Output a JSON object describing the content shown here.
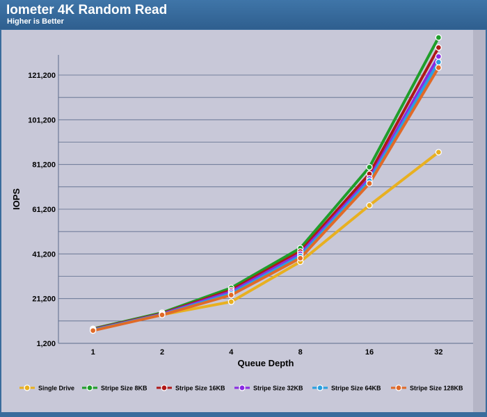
{
  "header": {
    "title": "Iometer 4K Random Read",
    "subtitle": "Higher is Better"
  },
  "chart_data": {
    "type": "line",
    "xlabel": "Queue Depth",
    "ylabel": "IOPS",
    "categories": [
      "1",
      "2",
      "4",
      "8",
      "16",
      "32"
    ],
    "yticks": [
      "1,200",
      "21,200",
      "41,200",
      "61,200",
      "81,200",
      "101,200",
      "121,200"
    ],
    "ylim": [
      1200,
      128000
    ],
    "grid": true,
    "legend_position": "bottom",
    "series": [
      {
        "name": "Single Drive",
        "color": "#e8b020",
        "values": [
          7000,
          14000,
          19800,
          37700,
          62900,
          86700
        ]
      },
      {
        "name": "Stripe Size 8KB",
        "color": "#1f9e2a",
        "values": [
          7700,
          14900,
          26000,
          43800,
          80000,
          138000
        ]
      },
      {
        "name": "Stripe Size 16KB",
        "color": "#b01818",
        "values": [
          7500,
          14500,
          25000,
          42300,
          77000,
          133500
        ]
      },
      {
        "name": "Stripe Size 32KB",
        "color": "#8a2be2",
        "values": [
          7300,
          14300,
          24300,
          41300,
          75000,
          129500
        ]
      },
      {
        "name": "Stripe Size 64KB",
        "color": "#2aa0e0",
        "values": [
          7200,
          14100,
          23500,
          40300,
          74000,
          127000
        ]
      },
      {
        "name": "Stripe Size 128KB",
        "color": "#e06a28",
        "values": [
          6900,
          13900,
          22800,
          39300,
          72700,
          124500
        ]
      }
    ]
  }
}
